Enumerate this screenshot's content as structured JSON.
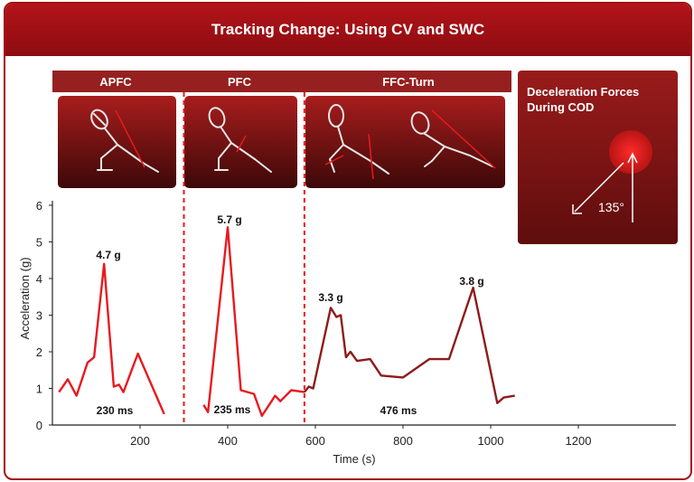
{
  "header": {
    "title": "Tracking Change: Using CV and SWC"
  },
  "phases": [
    {
      "label": "APFC",
      "duration": "230 ms",
      "peak": "4.7 g"
    },
    {
      "label": "PFC",
      "duration": "235 ms",
      "peak": "5.7 g"
    },
    {
      "label": "FFC-Turn",
      "duration": "476 ms",
      "peak_a": "3.3 g",
      "peak_b": "3.8 g"
    }
  ],
  "info_panel": {
    "line1": "Deceleration Forces",
    "line2": "During COD",
    "angle_label": "135°"
  },
  "colors": {
    "brand": "#a30f12",
    "line_bright": "#e8191f",
    "line_dark": "#8e1b1b",
    "panel": "#8c1a1a"
  },
  "chart_data": {
    "type": "line",
    "title": "Tracking Change: Using CV and SWC",
    "xlabel": "Time (s)",
    "ylabel": "Acceleration (g)",
    "xlim": [
      0,
      1400
    ],
    "ylim": [
      0,
      6
    ],
    "x_ticks": [
      200,
      400,
      600,
      800,
      1000,
      1200
    ],
    "y_ticks": [
      0,
      1,
      2,
      3,
      4,
      5,
      6
    ],
    "grid": false,
    "phase_boundaries": [
      300,
      575
    ],
    "series": [
      {
        "color": "#e8191f",
        "segments": [
          [
            [
              15,
              0.9
            ],
            [
              35,
              1.25
            ],
            [
              55,
              0.8
            ],
            [
              80,
              1.7
            ],
            [
              95,
              1.85
            ],
            [
              118,
              4.4
            ],
            [
              140,
              1.05
            ],
            [
              152,
              1.1
            ],
            [
              162,
              0.9
            ],
            [
              195,
              1.95
            ],
            [
              255,
              0.3
            ]
          ],
          [
            [
              345,
              0.55
            ],
            [
              355,
              0.35
            ],
            [
              400,
              5.4
            ],
            [
              430,
              0.95
            ],
            [
              460,
              0.85
            ],
            [
              478,
              0.25
            ],
            [
              500,
              0.65
            ],
            [
              508,
              0.8
            ],
            [
              520,
              0.65
            ],
            [
              545,
              0.95
            ],
            [
              575,
              0.9
            ]
          ]
        ]
      },
      {
        "color": "#8e1b1b",
        "segments": [
          [
            [
              575,
              0.9
            ],
            [
              585,
              1.05
            ],
            [
              595,
              1.0
            ],
            [
              635,
              3.2
            ],
            [
              648,
              2.95
            ],
            [
              658,
              3.0
            ],
            [
              670,
              1.85
            ],
            [
              680,
              2.0
            ],
            [
              695,
              1.75
            ],
            [
              725,
              1.8
            ],
            [
              750,
              1.35
            ],
            [
              800,
              1.3
            ],
            [
              860,
              1.8
            ],
            [
              905,
              1.8
            ],
            [
              960,
              3.75
            ],
            [
              1015,
              0.6
            ],
            [
              1030,
              0.75
            ],
            [
              1055,
              0.8
            ]
          ]
        ]
      }
    ]
  }
}
